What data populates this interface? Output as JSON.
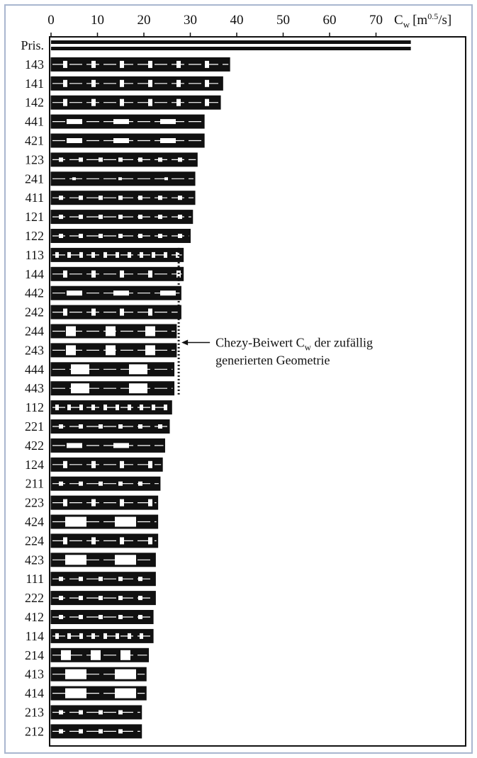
{
  "chart_data": {
    "type": "bar",
    "orientation": "horizontal",
    "xlabel": "C_w [m^0.5/s]",
    "xlabel_parts": {
      "symbol": "C",
      "sub": "w",
      "unit_open": "[m",
      "unit_sup": "0.5",
      "unit_close": "/s]"
    },
    "xlim": [
      0,
      90
    ],
    "xticks": [
      0,
      10,
      20,
      30,
      40,
      50,
      60,
      70
    ],
    "axis_position": "top",
    "grid": false,
    "categories": [
      "Pris.",
      "143",
      "141",
      "142",
      "441",
      "421",
      "123",
      "241",
      "411",
      "121",
      "122",
      "113",
      "144",
      "442",
      "242",
      "244",
      "243",
      "444",
      "443",
      "112",
      "221",
      "422",
      "124",
      "211",
      "223",
      "424",
      "224",
      "423",
      "111",
      "222",
      "412",
      "114",
      "214",
      "413",
      "414",
      "213",
      "212"
    ],
    "values": [
      77.5,
      38.5,
      37.0,
      36.5,
      33.0,
      33.0,
      31.5,
      31.0,
      31.0,
      30.5,
      30.0,
      28.5,
      28.5,
      28.0,
      28.0,
      27.0,
      27.0,
      26.5,
      26.5,
      26.0,
      25.5,
      24.5,
      24.0,
      23.5,
      23.0,
      23.0,
      23.0,
      22.5,
      22.5,
      22.5,
      22.0,
      22.0,
      21.0,
      20.5,
      20.5,
      19.5,
      19.5
    ],
    "patterns": [
      "solid",
      "sparse-dash",
      "sparse-dash",
      "sparse-dash",
      "long-light",
      "long-light",
      "dash",
      "solid-thin",
      "dash",
      "dash",
      "dash",
      "dense",
      "sparse-dash",
      "long-light",
      "sparse-dash",
      "blocks",
      "blocks",
      "big-blocks",
      "big-blocks",
      "dense",
      "dash",
      "long-light",
      "sparse-dash",
      "dash",
      "sparse-dash",
      "light",
      "sparse-dash",
      "light",
      "dash",
      "dash",
      "dash",
      "dense",
      "light-dash",
      "light",
      "light",
      "dash",
      "dash"
    ],
    "annotation": {
      "line1_prefix": "Chezy-Beiwert C",
      "line1_sub": "w",
      "line1_suffix": " der zufällig",
      "line2": "generierten Geometrie",
      "marker_value": 27.5,
      "marker_from_category": "113",
      "marker_to_category": "443",
      "arrow_category": "244"
    },
    "colors": {
      "bar": "#111111",
      "pattern_light": "#ffffff",
      "frame": "#a9b6cf"
    }
  }
}
